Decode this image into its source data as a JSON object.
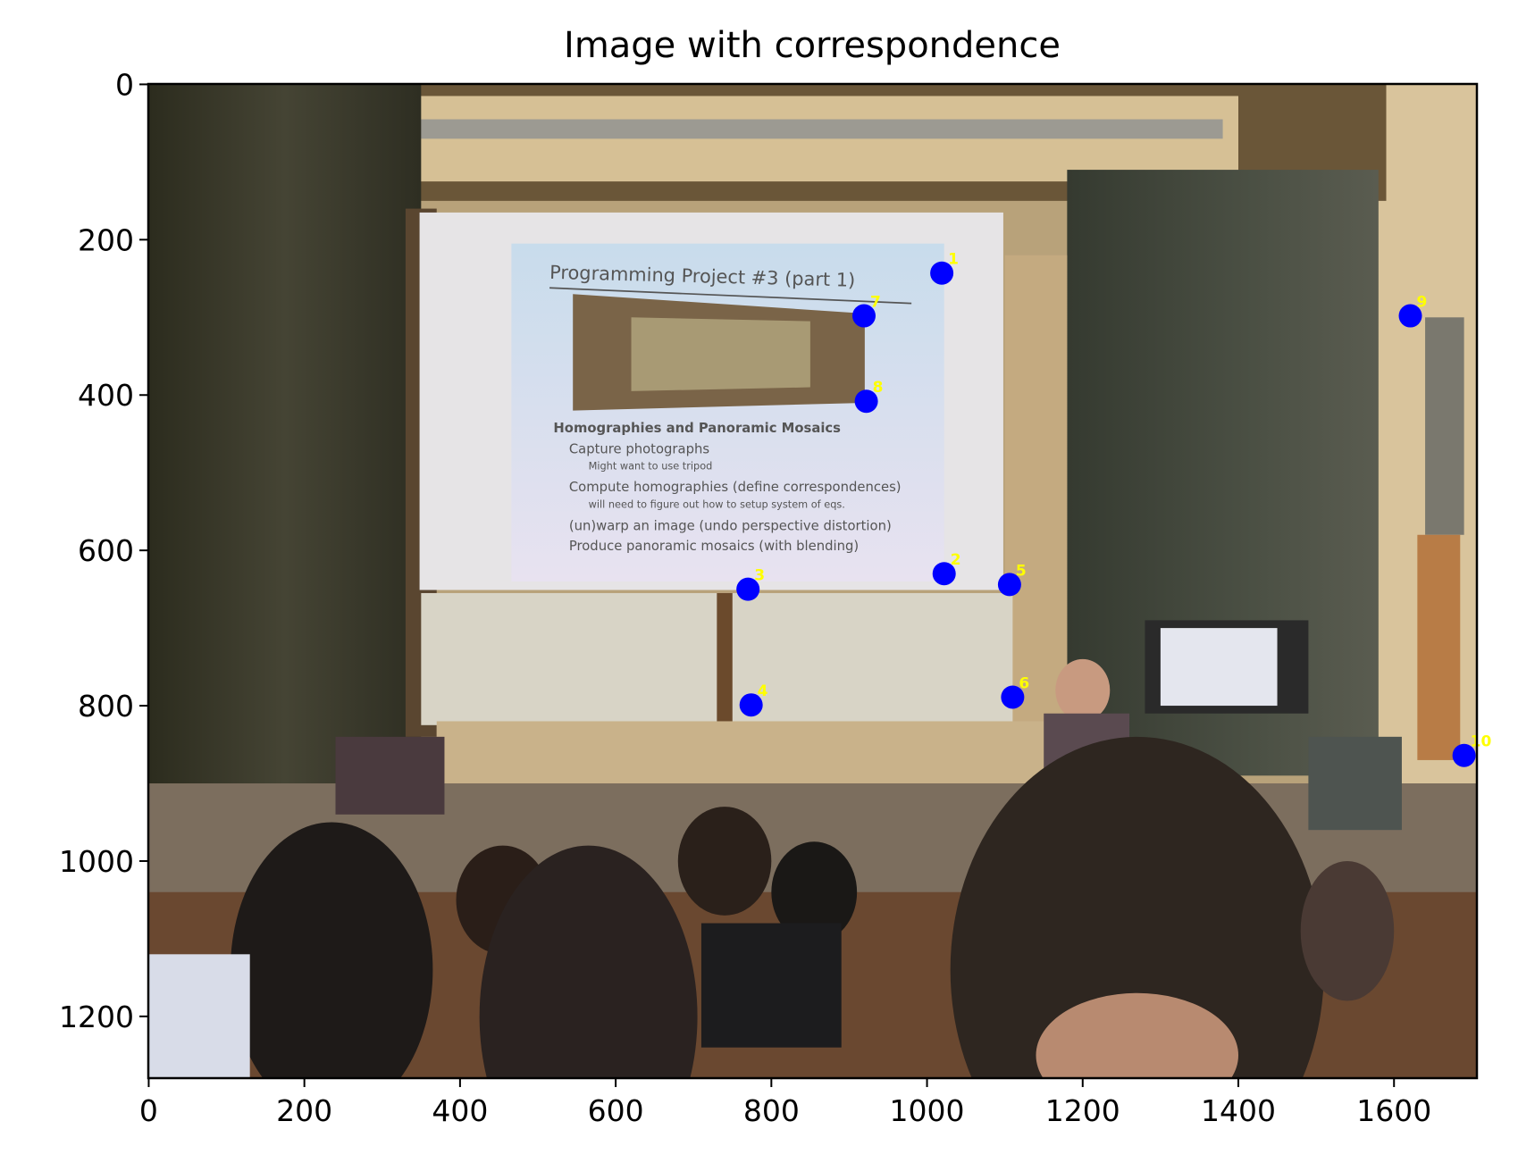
{
  "chart_data": {
    "type": "scatter",
    "title": "Image with correspondence",
    "xlabel": "",
    "ylabel": "",
    "xlim": [
      -0.5,
      1706.5
    ],
    "ylim": [
      1279.5,
      -0.5
    ],
    "y_inverted": true,
    "grid": false,
    "x_ticks": [
      0,
      200,
      400,
      600,
      800,
      1000,
      1200,
      1400,
      1600
    ],
    "y_ticks": [
      0,
      200,
      400,
      600,
      800,
      1000,
      1200
    ],
    "background": "photo of lecture hall with projection screen",
    "marker_color": "#0000ff",
    "label_color": "#ffff00",
    "points": [
      {
        "label": "1",
        "x": 1019,
        "y": 243
      },
      {
        "label": "2",
        "x": 1022,
        "y": 630
      },
      {
        "label": "3",
        "x": 770,
        "y": 650
      },
      {
        "label": "4",
        "x": 774,
        "y": 799
      },
      {
        "label": "5",
        "x": 1106,
        "y": 644
      },
      {
        "label": "6",
        "x": 1110,
        "y": 789
      },
      {
        "label": "7",
        "x": 919,
        "y": 298
      },
      {
        "label": "8",
        "x": 922,
        "y": 408
      },
      {
        "label": "9",
        "x": 1621,
        "y": 298
      },
      {
        "label": "10",
        "x": 1690,
        "y": 864
      }
    ]
  },
  "photo": {
    "slide_title": "Programming Project #3 (part 1)",
    "slide_heading": "Homographies and Panoramic Mosaics",
    "slide_bullets": [
      {
        "text": "Capture photographs",
        "level": 1
      },
      {
        "text": "Might want to use tripod",
        "level": 2
      },
      {
        "text": "Compute homographies (define correspondences)",
        "level": 1
      },
      {
        "text": "will need to figure out how to setup system of eqs.",
        "level": 2
      },
      {
        "text": "(un)warp an image (undo perspective distortion)",
        "level": 1
      },
      {
        "text": "Produce panoramic mosaics (with blending)",
        "level": 1
      }
    ]
  }
}
